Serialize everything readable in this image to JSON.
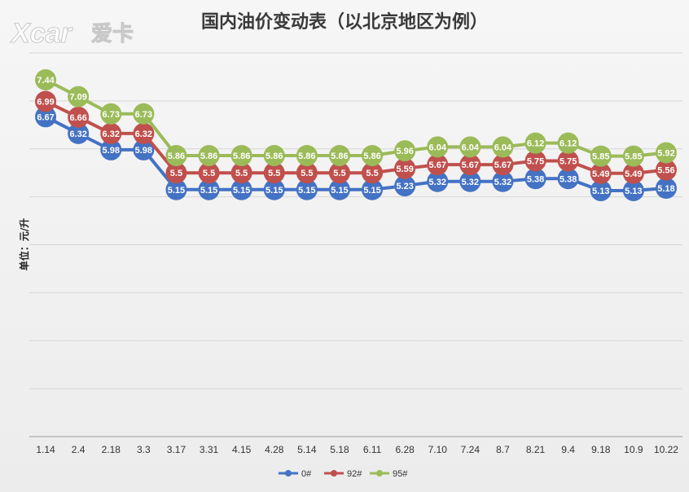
{
  "logo": {
    "text_latin": "Xcar",
    "text_cn": "爱卡"
  },
  "colors": {
    "s0": "#4472c4",
    "s92": "#c0504d",
    "s95": "#9bbb59",
    "grid": "#d6d6d6"
  },
  "chart_data": {
    "type": "line",
    "title": "国内油价变动表（以北京地区为例）",
    "ylabel": "单位：元/升",
    "xlabel": "",
    "grid": true,
    "legend_position": "bottom",
    "ylim": [
      0,
      8
    ],
    "categories": [
      "1.14",
      "2.4",
      "2.18",
      "3.3",
      "3.17",
      "3.31",
      "4.15",
      "4.28",
      "5.14",
      "5.18",
      "6.11",
      "6.28",
      "7.10",
      "7.24",
      "8.7",
      "8.21",
      "9.4",
      "9.18",
      "10.9",
      "10.22"
    ],
    "series": [
      {
        "name": "0#",
        "values": [
          6.67,
          6.32,
          5.98,
          5.98,
          5.15,
          5.15,
          5.15,
          5.15,
          5.15,
          5.15,
          5.15,
          5.23,
          5.32,
          5.32,
          5.32,
          5.38,
          5.38,
          5.13,
          5.13,
          5.18
        ]
      },
      {
        "name": "92#",
        "values": [
          6.99,
          6.66,
          6.32,
          6.32,
          5.5,
          5.5,
          5.5,
          5.5,
          5.5,
          5.5,
          5.5,
          5.59,
          5.67,
          5.67,
          5.67,
          5.75,
          5.75,
          5.49,
          5.49,
          5.56
        ]
      },
      {
        "name": "95#",
        "values": [
          7.44,
          7.09,
          6.73,
          6.73,
          5.86,
          5.86,
          5.86,
          5.86,
          5.86,
          5.86,
          5.86,
          5.96,
          6.04,
          6.04,
          6.04,
          6.12,
          6.12,
          5.85,
          5.85,
          5.92
        ]
      }
    ]
  }
}
